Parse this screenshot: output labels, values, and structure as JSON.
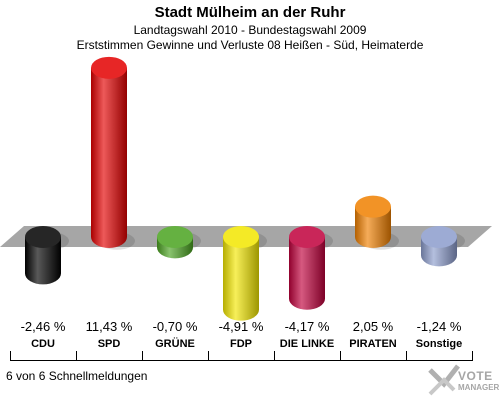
{
  "header": {
    "title": "Stadt Mülheim an der Ruhr",
    "subtitle1": "Landtagswahl 2010 - Bundestagswahl 2009",
    "subtitle2": "Erststimmen Gewinne und Verluste 08 Heißen - Süd, Heimaterde"
  },
  "chart_data": {
    "type": "bar",
    "title": "Stadt Mülheim an der Ruhr",
    "categories": [
      "CDU",
      "SPD",
      "GRÜNE",
      "FDP",
      "DIE LINKE",
      "PIRATEN",
      "Sonstige"
    ],
    "values": [
      -2.46,
      11.43,
      -0.7,
      -4.91,
      -4.17,
      2.05,
      -1.24
    ],
    "value_labels": [
      "-2,46 %",
      "11,43 %",
      "-0,70 %",
      "-4,91 %",
      "-4,17 %",
      "2,05 %",
      "-1,24 %"
    ],
    "colors": [
      "#000000",
      "#e30000",
      "#4aa320",
      "#f2e600",
      "#c0003c",
      "#f08000",
      "#8c9ccc"
    ],
    "unit": "%",
    "xlabel": "",
    "ylabel": "",
    "grid": false
  },
  "labels": {
    "l0": "CDU",
    "l1": "SPD",
    "l2": "GRÜNE",
    "l3": "FDP",
    "l4": "DIE LINKE",
    "l5": "PIRATEN",
    "l6": "Sonstige"
  },
  "footer": "6 von 6 Schnellmeldungen",
  "logo": {
    "line1": "VOTE",
    "line2": "MANAGER"
  }
}
